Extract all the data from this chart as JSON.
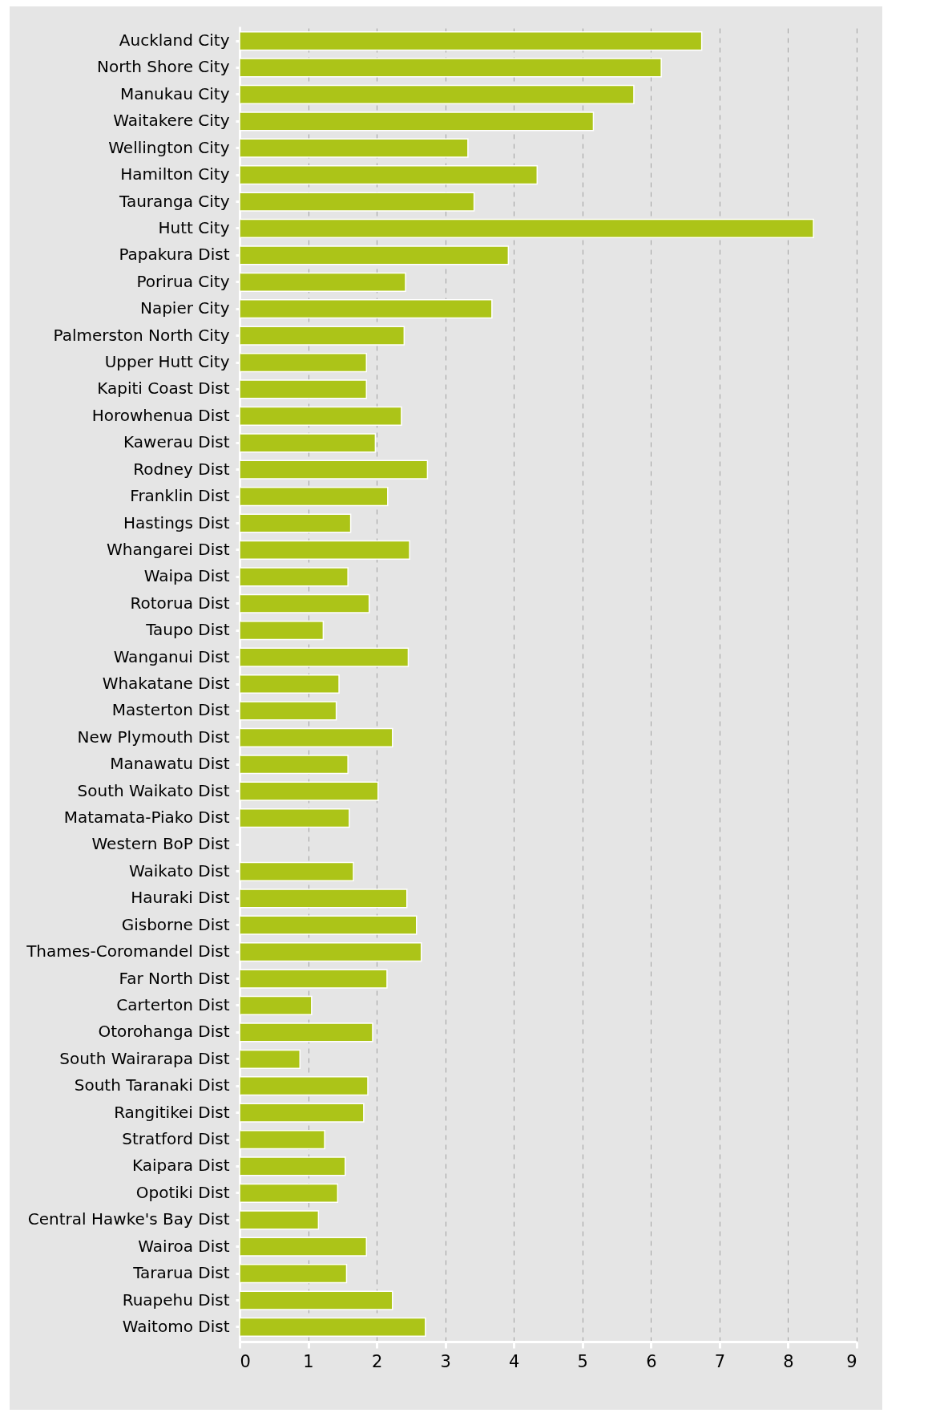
{
  "chart_data": {
    "type": "bar",
    "orientation": "horizontal",
    "color": "#acc418",
    "grid": "x",
    "categories": [
      "Auckland City",
      "North Shore City",
      "Manukau City",
      "Waitakere City",
      "Wellington City",
      "Hamilton City",
      "Tauranga City",
      "Hutt City",
      "Papakura Dist",
      "Porirua City",
      "Napier City",
      "Palmerston North City",
      "Upper Hutt City",
      "Kapiti Coast Dist",
      "Horowhenua Dist",
      "Kawerau Dist",
      "Rodney Dist",
      "Franklin Dist",
      "Hastings Dist",
      "Whangarei Dist",
      "Waipa Dist",
      "Rotorua Dist",
      "Taupo Dist",
      "Wanganui Dist",
      "Whakatane Dist",
      "Masterton Dist",
      "New Plymouth Dist",
      "Manawatu Dist",
      "South Waikato Dist",
      "Matamata-Piako Dist",
      "Western BoP Dist",
      "Waikato Dist",
      "Hauraki Dist",
      "Gisborne Dist",
      "Thames-Coromandel Dist",
      "Far North Dist",
      "Carterton Dist",
      "Otorohanga Dist",
      "South Wairarapa Dist",
      "South Taranaki Dist",
      "Rangitikei Dist",
      "Stratford Dist",
      "Kaipara Dist",
      "Opotiki Dist",
      "Central Hawke's Bay Dist",
      "Wairoa Dist",
      "Tararua Dist",
      "Ruapehu Dist",
      "Waitomo Dist"
    ],
    "values": [
      6.74,
      6.15,
      5.75,
      5.16,
      3.33,
      4.34,
      3.42,
      8.37,
      3.92,
      2.42,
      3.68,
      2.4,
      1.85,
      1.85,
      2.36,
      1.98,
      2.74,
      2.16,
      1.62,
      2.48,
      1.58,
      1.89,
      1.22,
      2.46,
      1.45,
      1.41,
      2.23,
      1.58,
      2.02,
      1.6,
      null,
      1.66,
      2.44,
      2.58,
      2.65,
      2.15,
      1.05,
      1.94,
      0.88,
      1.87,
      1.81,
      1.24,
      1.54,
      1.43,
      1.15,
      1.85,
      1.56,
      2.23,
      2.71
    ],
    "xlim": [
      0,
      9
    ],
    "xticks": [
      0,
      1,
      2,
      3,
      4,
      5,
      6,
      7,
      8,
      9
    ]
  }
}
